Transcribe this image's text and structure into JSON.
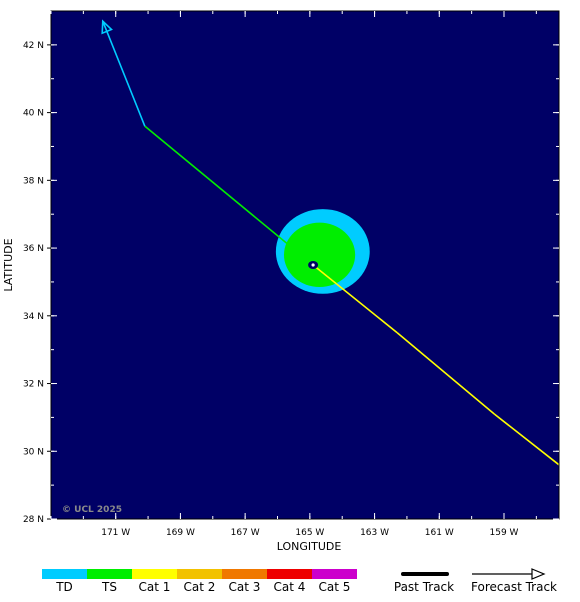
{
  "map": {
    "credit": "© UCL 2025",
    "xlabel": "LONGITUDE",
    "ylabel": "LATITUDE",
    "background_color": "#000066",
    "lon_range": [
      -173.0,
      -157.3
    ],
    "lat_range": [
      28,
      43
    ],
    "x_ticks": [
      {
        "value": -171,
        "label": "171 W"
      },
      {
        "value": -169,
        "label": "169 W"
      },
      {
        "value": -167,
        "label": "167 W"
      },
      {
        "value": -165,
        "label": "165 W"
      },
      {
        "value": -163,
        "label": "163 W"
      },
      {
        "value": -161,
        "label": "161 W"
      },
      {
        "value": -159,
        "label": "159 W"
      }
    ],
    "y_ticks": [
      {
        "value": 28,
        "label": "28 N"
      },
      {
        "value": 30,
        "label": "30 N"
      },
      {
        "value": 32,
        "label": "32 N"
      },
      {
        "value": 34,
        "label": "34 N"
      },
      {
        "value": 36,
        "label": "36 N"
      },
      {
        "value": 38,
        "label": "38 N"
      },
      {
        "value": 40,
        "label": "40 N"
      },
      {
        "value": 42,
        "label": "42 N"
      }
    ],
    "storm_center": {
      "lon": -164.9,
      "lat": 35.5
    },
    "wind_fields": [
      {
        "category": "TD",
        "color": "#00ccff",
        "lon": -164.6,
        "lat": 35.9,
        "rx_deg": 1.45,
        "ry_deg": 1.25
      },
      {
        "category": "TS",
        "color": "#00ee00",
        "lon": -164.7,
        "lat": 35.8,
        "rx_deg": 1.1,
        "ry_deg": 0.95
      }
    ],
    "track": [
      {
        "lon": -157.3,
        "lat": 29.6,
        "category": "Cat 1"
      },
      {
        "lon": -159.3,
        "lat": 31.1,
        "category": "Cat 1"
      },
      {
        "lon": -162.3,
        "lat": 33.5,
        "category": "Cat 1"
      },
      {
        "lon": -164.9,
        "lat": 35.5,
        "category": "TS"
      },
      {
        "lon": -170.1,
        "lat": 39.6,
        "category": "TD"
      },
      {
        "lon": -171.4,
        "lat": 42.7,
        "category": "TD"
      }
    ]
  },
  "legend": {
    "categories": [
      {
        "label": "TD",
        "color": "#00ccff"
      },
      {
        "label": "TS",
        "color": "#00ee00"
      },
      {
        "label": "Cat 1",
        "color": "#ffff00"
      },
      {
        "label": "Cat 2",
        "color": "#f2c200"
      },
      {
        "label": "Cat 3",
        "color": "#f07800"
      },
      {
        "label": "Cat 4",
        "color": "#ee0000"
      },
      {
        "label": "Cat 5",
        "color": "#cc00cc"
      }
    ],
    "past_track_label": "Past Track",
    "forecast_track_label": "Forecast Track"
  }
}
